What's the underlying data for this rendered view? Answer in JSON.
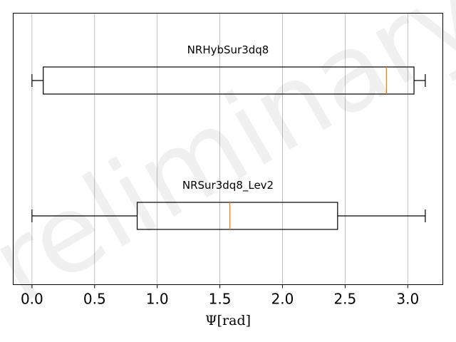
{
  "chart_data": {
    "type": "box",
    "orientation": "horizontal",
    "xlabel": "Ψ[rad]",
    "xlim": [
      -0.15,
      3.28
    ],
    "xticks": [
      0.0,
      0.5,
      1.0,
      1.5,
      2.0,
      2.5,
      3.0
    ],
    "xtick_labels": [
      "0.0",
      "0.5",
      "1.0",
      "1.5",
      "2.0",
      "2.5",
      "3.0"
    ],
    "grid": "vertical",
    "watermark": "Preliminary",
    "series": [
      {
        "name": "NRHybSur3dq8",
        "whisker_low": 0.0,
        "q1": 0.09,
        "median": 2.83,
        "q3": 3.05,
        "whisker_high": 3.14
      },
      {
        "name": "NRSur3dq8_Lev2",
        "whisker_low": 0.0,
        "q1": 0.84,
        "median": 1.58,
        "q3": 2.44,
        "whisker_high": 3.14
      }
    ],
    "colors": {
      "box": "#000000",
      "median": "#ff7f0e",
      "grid": "#b0b0b0"
    }
  }
}
